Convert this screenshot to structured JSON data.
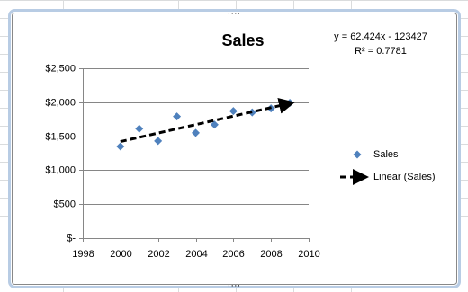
{
  "chart_data": {
    "type": "scatter",
    "title": "Sales",
    "annotations": [
      "y = 62.424x - 123427",
      "R² = 0.7781"
    ],
    "series": [
      {
        "name": "Sales",
        "type": "scatter",
        "color": "#4f81bd",
        "x": [
          2000,
          2001,
          2002,
          2003,
          2004,
          2005,
          2006,
          2007,
          2008,
          2009
        ],
        "values": [
          1350,
          1610,
          1430,
          1790,
          1550,
          1670,
          1870,
          1850,
          1910,
          1990
        ]
      },
      {
        "name": "Linear (Sales)",
        "type": "line",
        "color": "#000000",
        "x": [
          2000,
          2009
        ],
        "values": [
          1421,
          1983
        ]
      }
    ],
    "xlim": [
      1998,
      2010
    ],
    "xticks": [
      1998,
      2000,
      2002,
      2004,
      2006,
      2008,
      2010
    ],
    "ylim": [
      0,
      2500
    ],
    "yticks": [
      {
        "value": 0,
        "label": "$-"
      },
      {
        "value": 500,
        "label": "$500"
      },
      {
        "value": 1000,
        "label": "$1,000"
      },
      {
        "value": 1500,
        "label": "$1,500"
      },
      {
        "value": 2000,
        "label": "$2,000"
      },
      {
        "value": 2500,
        "label": "$2,500"
      }
    ],
    "grid": true,
    "legend": "right"
  }
}
